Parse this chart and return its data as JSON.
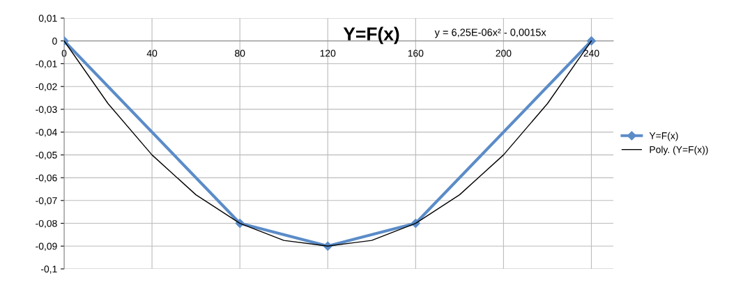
{
  "chart_data": {
    "type": "line",
    "title": "Y=F(x)",
    "annotations": [
      "y = 6,25E-06x² - 0,0015x"
    ],
    "series": [
      {
        "name": "Y=F(x)",
        "color": "#5b8cc8",
        "x": [
          0,
          80,
          120,
          160,
          240
        ],
        "values": [
          0,
          -0.08,
          -0.09,
          -0.08,
          0
        ],
        "marker": "diamond"
      },
      {
        "name": "Poly. (Y=F(x))",
        "color": "#000000",
        "x": [
          0,
          20,
          40,
          60,
          80,
          100,
          120,
          140,
          160,
          180,
          200,
          220,
          240
        ],
        "values": [
          0,
          -0.0275,
          -0.05,
          -0.0675,
          -0.08,
          -0.0875,
          -0.09,
          -0.0875,
          -0.08,
          -0.0675,
          -0.05,
          -0.0275,
          0
        ],
        "marker": "none"
      }
    ],
    "xlim": [
      0,
      250
    ],
    "xticks": [
      0,
      40,
      80,
      120,
      160,
      200,
      240
    ],
    "ylim": [
      -0.1,
      0.01
    ],
    "yticks": [
      {
        "value": -0.1,
        "label": "-0,1"
      },
      {
        "value": -0.09,
        "label": "-0,09"
      },
      {
        "value": -0.08,
        "label": "-0,08"
      },
      {
        "value": -0.07,
        "label": "-0,07"
      },
      {
        "value": -0.06,
        "label": "-0,06"
      },
      {
        "value": -0.05,
        "label": "-0,05"
      },
      {
        "value": -0.04,
        "label": "-0,04"
      },
      {
        "value": -0.03,
        "label": "-0,03"
      },
      {
        "value": -0.02,
        "label": "-0,02"
      },
      {
        "value": -0.01,
        "label": "-0,01"
      },
      {
        "value": 0,
        "label": "0"
      },
      {
        "value": 0.01,
        "label": "0,01"
      }
    ],
    "grid": true,
    "legend": "right",
    "line_style": "solid"
  }
}
